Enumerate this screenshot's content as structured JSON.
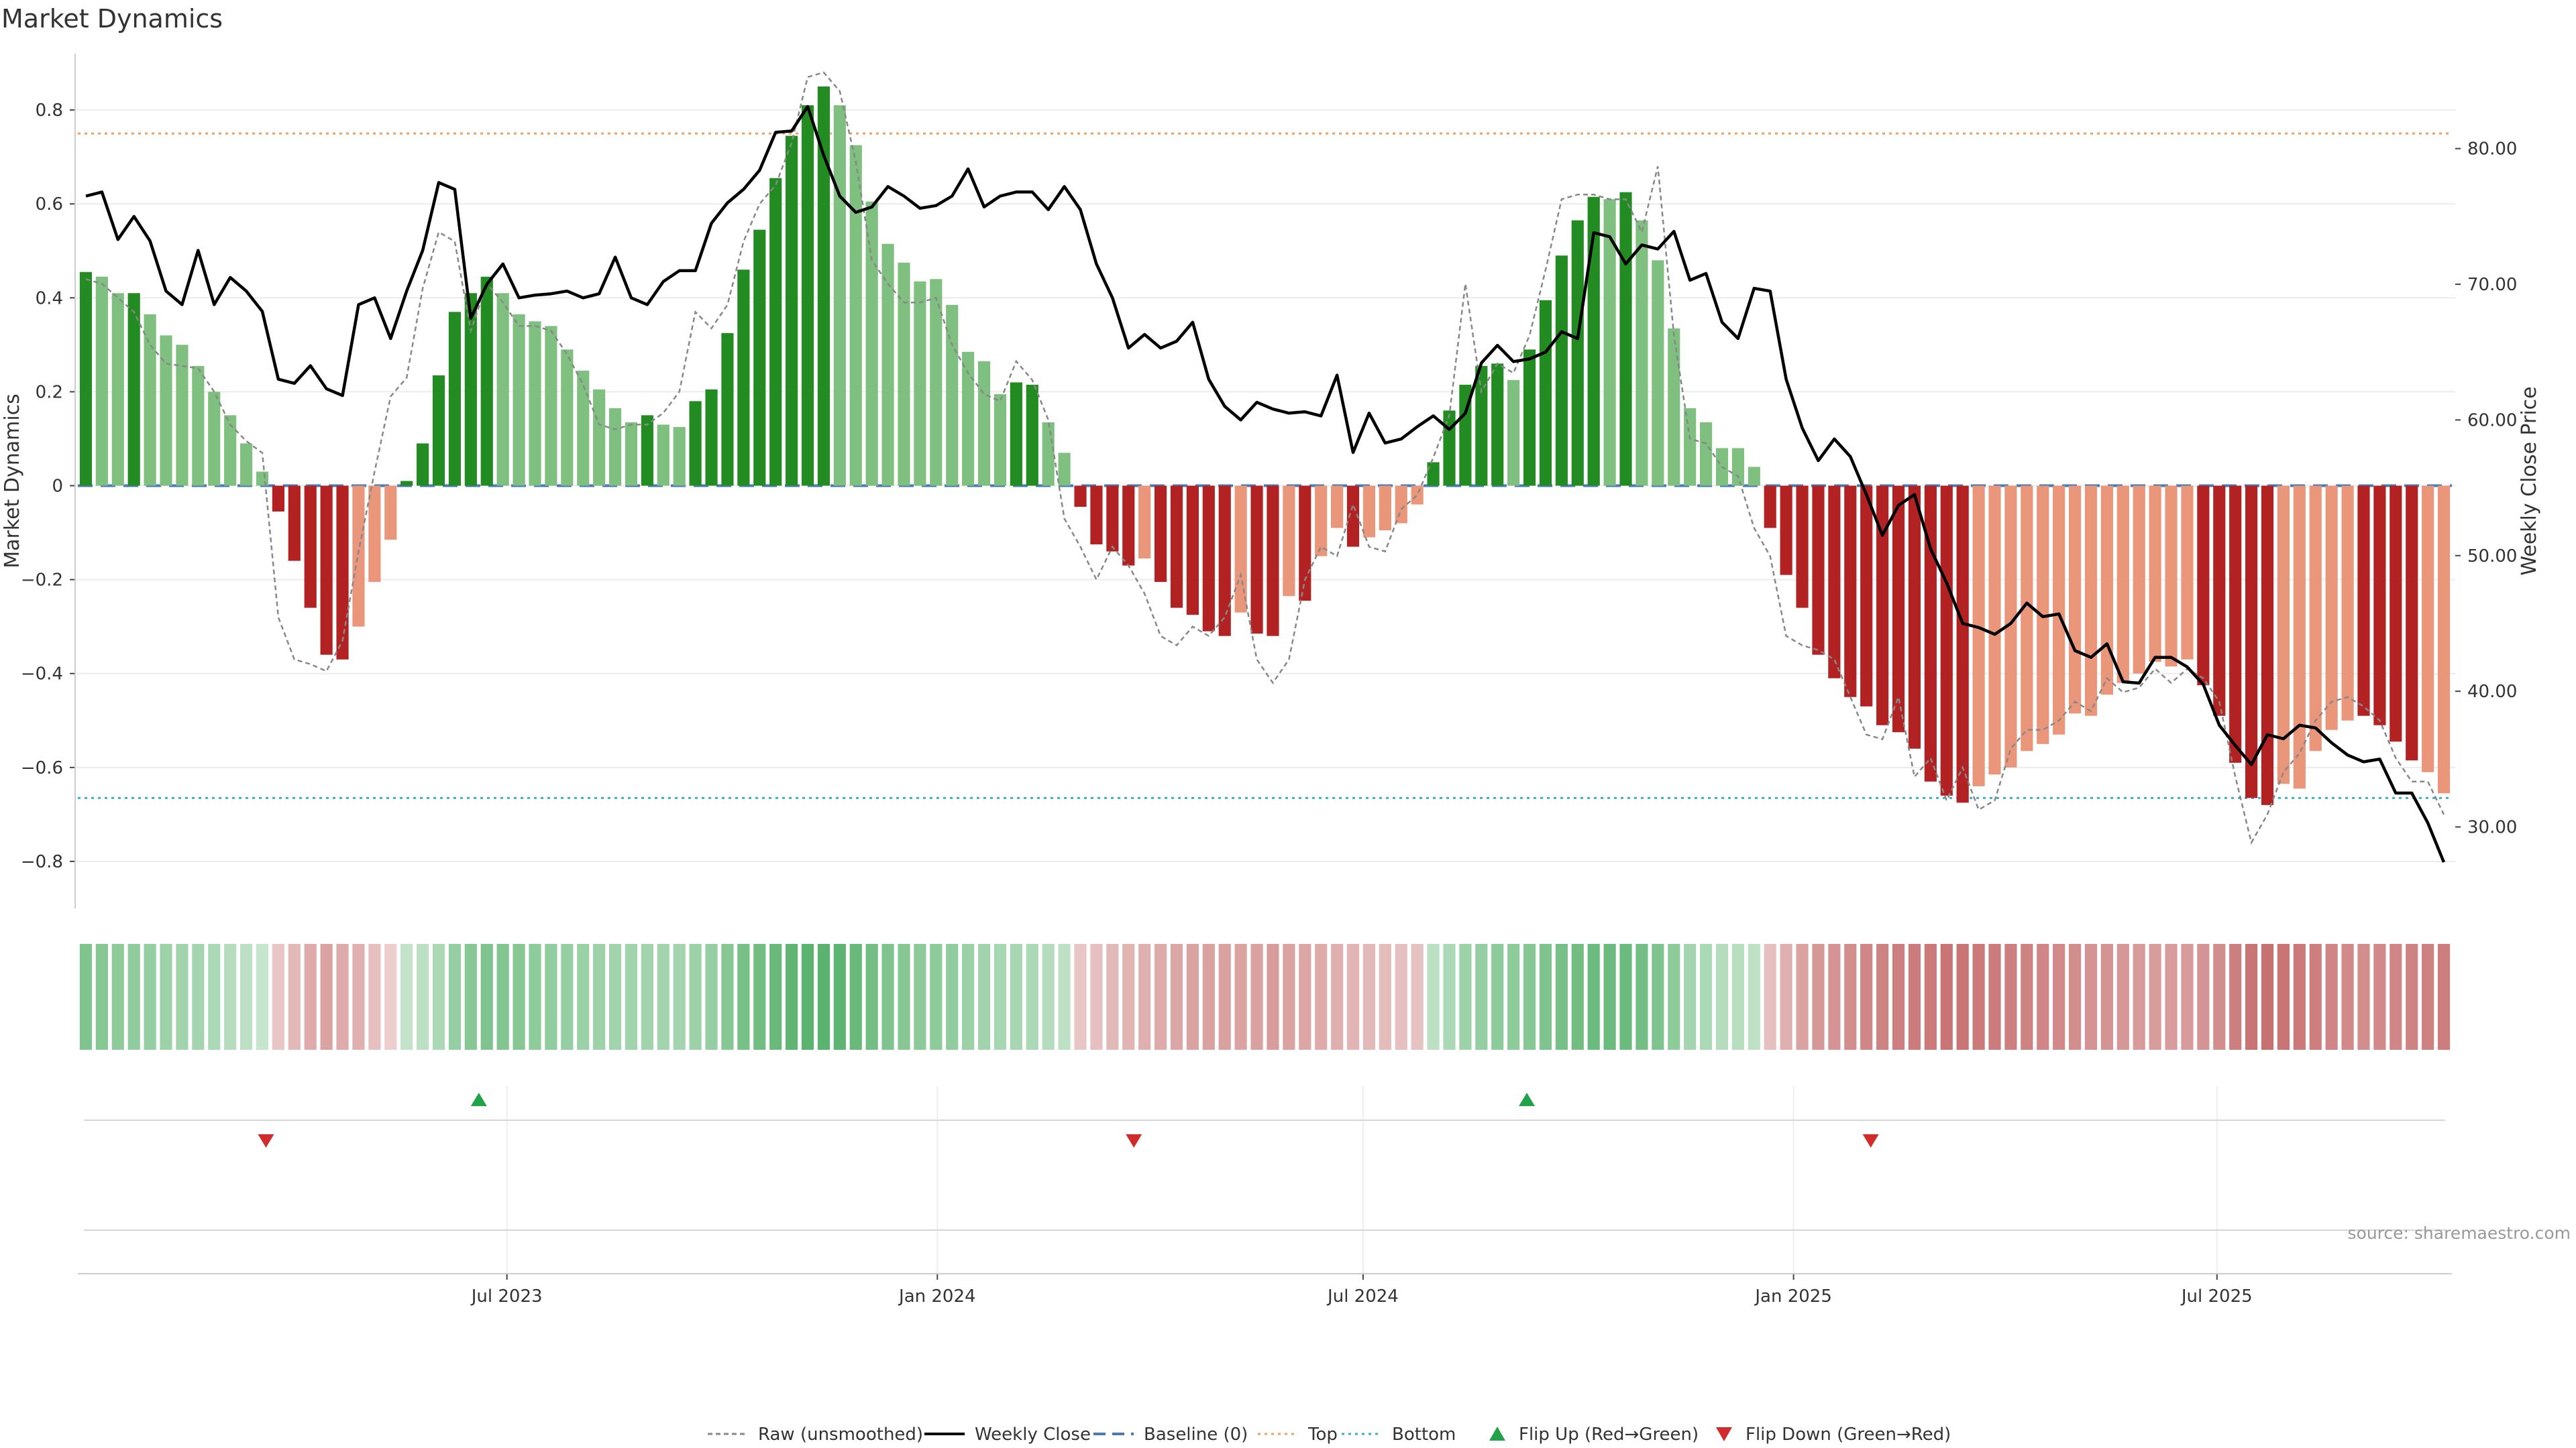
{
  "title": "Market Dynamics",
  "source_note": "source: sharemaestro.com",
  "colors": {
    "pos_strong": "#228B22",
    "pos_light": "#7FBF7F",
    "neg_strong": "#B22222",
    "neg_light": "#E9967A",
    "raw_line": "#888888",
    "close_line": "#000000",
    "baseline": "#4a7ab5",
    "top_line": "#f0a060",
    "bottom_line": "#40b0c0",
    "flip_up": "#22a34a",
    "flip_down": "#d22b2b"
  },
  "chart_data": {
    "type": "bar",
    "title": "Market Dynamics",
    "ylabel": "Market Dynamics",
    "y2label": "Weekly Close Price",
    "ylim": [
      -0.9,
      0.92
    ],
    "y2lim": [
      24,
      87
    ],
    "yticks": [
      -0.8,
      -0.6,
      -0.4,
      -0.2,
      0,
      0.2,
      0.4,
      0.6,
      0.8
    ],
    "ytick_labels": [
      "−0.8",
      "−0.6",
      "−0.4",
      "−0.2",
      "0",
      "0.2",
      "0.4",
      "0.6",
      "0.8"
    ],
    "y2ticks": [
      30,
      40,
      50,
      60,
      70,
      80
    ],
    "y2tick_labels": [
      "30.00",
      "40.00",
      "50.00",
      "60.00",
      "70.00",
      "80.00"
    ],
    "x_start": "2023-01-02",
    "x_end": "2025-10-06",
    "xticks": [
      "2023-07-01",
      "2024-01-01",
      "2024-07-01",
      "2025-01-01",
      "2025-07-01"
    ],
    "xtick_labels": [
      "Jul 2023",
      "Jan 2024",
      "Jul 2024",
      "Jan 2025",
      "Jul 2025"
    ],
    "top_threshold": 0.75,
    "bottom_threshold": -0.665,
    "values": [
      0.455,
      0.445,
      0.41,
      0.41,
      0.365,
      0.32,
      0.3,
      0.255,
      0.2,
      0.15,
      0.09,
      0.03,
      -0.055,
      -0.16,
      -0.26,
      -0.36,
      -0.37,
      -0.3,
      -0.205,
      -0.115,
      0.01,
      0.09,
      0.235,
      0.37,
      0.41,
      0.445,
      0.41,
      0.365,
      0.35,
      0.34,
      0.29,
      0.245,
      0.205,
      0.165,
      0.135,
      0.15,
      0.13,
      0.125,
      0.18,
      0.205,
      0.325,
      0.46,
      0.545,
      0.655,
      0.745,
      0.81,
      0.85,
      0.81,
      0.725,
      0.605,
      0.515,
      0.475,
      0.435,
      0.44,
      0.385,
      0.285,
      0.265,
      0.195,
      0.22,
      0.215,
      0.135,
      0.07,
      -0.045,
      -0.125,
      -0.14,
      -0.17,
      -0.155,
      -0.205,
      -0.26,
      -0.275,
      -0.31,
      -0.32,
      -0.27,
      -0.315,
      -0.32,
      -0.235,
      -0.245,
      -0.15,
      -0.09,
      -0.13,
      -0.11,
      -0.095,
      -0.08,
      -0.04,
      0.05,
      0.16,
      0.215,
      0.255,
      0.26,
      0.225,
      0.29,
      0.395,
      0.49,
      0.565,
      0.615,
      0.61,
      0.625,
      0.565,
      0.48,
      0.335,
      0.165,
      0.135,
      0.08,
      0.08,
      0.04,
      -0.09,
      -0.19,
      -0.26,
      -0.36,
      -0.41,
      -0.45,
      -0.47,
      -0.51,
      -0.525,
      -0.56,
      -0.63,
      -0.66,
      -0.675,
      -0.64,
      -0.615,
      -0.6,
      -0.565,
      -0.55,
      -0.53,
      -0.485,
      -0.49,
      -0.445,
      -0.42,
      -0.4,
      -0.375,
      -0.385,
      -0.37,
      -0.425,
      -0.49,
      -0.59,
      -0.665,
      -0.68,
      -0.635,
      -0.645,
      -0.565,
      -0.52,
      -0.5,
      -0.49,
      -0.51,
      -0.545,
      -0.585,
      -0.61,
      -0.655
    ],
    "shades": [
      1,
      0,
      0,
      1,
      0,
      0,
      0,
      0,
      0,
      0,
      0,
      0,
      1,
      1,
      1,
      1,
      1,
      0,
      0,
      0,
      1,
      1,
      1,
      1,
      1,
      1,
      0,
      0,
      0,
      0,
      0,
      0,
      0,
      0,
      0,
      1,
      0,
      0,
      1,
      1,
      1,
      1,
      1,
      1,
      1,
      1,
      1,
      0,
      0,
      0,
      0,
      0,
      0,
      0,
      0,
      0,
      0,
      0,
      1,
      1,
      0,
      0,
      1,
      1,
      1,
      1,
      0,
      1,
      1,
      1,
      1,
      1,
      0,
      1,
      1,
      0,
      1,
      0,
      0,
      1,
      0,
      0,
      0,
      0,
      1,
      1,
      1,
      1,
      1,
      0,
      1,
      1,
      1,
      1,
      1,
      0,
      1,
      0,
      0,
      0,
      0,
      0,
      0,
      0,
      0,
      1,
      1,
      1,
      1,
      1,
      1,
      1,
      1,
      1,
      1,
      1,
      1,
      1,
      0,
      0,
      0,
      0,
      0,
      0,
      0,
      0,
      0,
      0,
      0,
      0,
      0,
      0,
      1,
      1,
      1,
      1,
      1,
      0,
      0,
      0,
      0,
      0,
      1,
      1,
      1,
      1
    ],
    "series": [
      {
        "name": "Raw (unsmoothed)",
        "values": [
          0.44,
          0.43,
          0.4,
          0.37,
          0.3,
          0.26,
          0.255,
          0.25,
          0.2,
          0.13,
          0.095,
          0.07,
          -0.28,
          -0.37,
          -0.38,
          -0.395,
          -0.33,
          -0.14,
          0.03,
          0.19,
          0.23,
          0.42,
          0.54,
          0.52,
          0.33,
          0.43,
          0.39,
          0.34,
          0.34,
          0.33,
          0.28,
          0.215,
          0.13,
          0.12,
          0.13,
          0.13,
          0.155,
          0.2,
          0.37,
          0.335,
          0.385,
          0.52,
          0.6,
          0.64,
          0.73,
          0.87,
          0.88,
          0.84,
          0.69,
          0.48,
          0.43,
          0.39,
          0.39,
          0.4,
          0.3,
          0.24,
          0.195,
          0.18,
          0.265,
          0.225,
          0.14,
          -0.07,
          -0.13,
          -0.2,
          -0.13,
          -0.17,
          -0.23,
          -0.32,
          -0.34,
          -0.3,
          -0.32,
          -0.28,
          -0.19,
          -0.37,
          -0.42,
          -0.37,
          -0.2,
          -0.13,
          -0.15,
          -0.04,
          -0.13,
          -0.14,
          -0.05,
          -0.02,
          0.06,
          0.15,
          0.43,
          0.2,
          0.26,
          0.24,
          0.32,
          0.46,
          0.61,
          0.62,
          0.62,
          0.61,
          0.61,
          0.54,
          0.68,
          0.32,
          0.1,
          0.09,
          0.04,
          0.02,
          -0.09,
          -0.15,
          -0.32,
          -0.34,
          -0.35,
          -0.37,
          -0.45,
          -0.53,
          -0.54,
          -0.45,
          -0.62,
          -0.58,
          -0.67,
          -0.6,
          -0.69,
          -0.67,
          -0.56,
          -0.52,
          -0.52,
          -0.5,
          -0.46,
          -0.48,
          -0.41,
          -0.44,
          -0.43,
          -0.39,
          -0.42,
          -0.39,
          -0.41,
          -0.46,
          -0.62,
          -0.76,
          -0.7,
          -0.61,
          -0.57,
          -0.5,
          -0.46,
          -0.45,
          -0.47,
          -0.5,
          -0.58,
          -0.63,
          -0.63,
          -0.7
        ]
      },
      {
        "name": "Weekly Close",
        "values": [
          76.5,
          76.8,
          73.3,
          75,
          73.2,
          69.5,
          68.5,
          72.5,
          68.5,
          70.5,
          69.5,
          68,
          63,
          62.7,
          64,
          62.3,
          61.8,
          68.5,
          69,
          66,
          69.5,
          72.5,
          77.5,
          77,
          67.5,
          70,
          71.5,
          69,
          69.2,
          69.3,
          69.5,
          69,
          69.3,
          72,
          69,
          68.5,
          70.2,
          71,
          71,
          74.5,
          76,
          77,
          78.4,
          81.2,
          81.3,
          83.1,
          79.5,
          76.5,
          75.3,
          75.7,
          77.2,
          76.5,
          75.6,
          75.8,
          76.5,
          78.5,
          75.7,
          76.5,
          76.8,
          76.8,
          75.5,
          77.2,
          75.5,
          71.5,
          69,
          65.3,
          66.3,
          65.3,
          65.8,
          67.2,
          63,
          61,
          60,
          61.3,
          60.8,
          60.5,
          60.6,
          60.3,
          63.3,
          57.6,
          60.5,
          58.3,
          58.6,
          59.5,
          60.3,
          59.3,
          60.5,
          64.2,
          65.5,
          64.3,
          64.5,
          65,
          66.5,
          66,
          73.8,
          73.5,
          71.5,
          72.9,
          72.6,
          73.9,
          70.3,
          70.8,
          67.2,
          66,
          69.7,
          69.5,
          63,
          59.4,
          57,
          58.6,
          57.3,
          54.5,
          51.5,
          53.7,
          54.5,
          50.5,
          48,
          45,
          44.7,
          44.2,
          45,
          46.5,
          45.5,
          45.7,
          43,
          42.5,
          43.5,
          40.7,
          40.6,
          42.5,
          42.5,
          41.8,
          40.5,
          37.5,
          36,
          34.6,
          36.8,
          36.5,
          37.5,
          37.3,
          36.2,
          35.3,
          34.8,
          35,
          32.5,
          32.5,
          30.3,
          27.4
        ]
      }
    ],
    "panel2_intensity": [
      0.6,
      0.55,
      0.5,
      0.48,
      0.45,
      0.4,
      0.38,
      0.35,
      0.3,
      0.25,
      0.2,
      0.12,
      0.15,
      0.25,
      0.35,
      0.4,
      0.35,
      0.3,
      0.2,
      0.1,
      0.15,
      0.2,
      0.3,
      0.45,
      0.55,
      0.6,
      0.58,
      0.55,
      0.5,
      0.48,
      0.45,
      0.42,
      0.4,
      0.38,
      0.38,
      0.38,
      0.36,
      0.36,
      0.4,
      0.45,
      0.55,
      0.65,
      0.7,
      0.75,
      0.8,
      0.85,
      0.85,
      0.82,
      0.75,
      0.68,
      0.6,
      0.55,
      0.52,
      0.5,
      0.48,
      0.42,
      0.38,
      0.34,
      0.33,
      0.3,
      0.25,
      0.18,
      0.15,
      0.2,
      0.25,
      0.28,
      0.3,
      0.35,
      0.38,
      0.4,
      0.42,
      0.42,
      0.4,
      0.42,
      0.45,
      0.4,
      0.38,
      0.35,
      0.3,
      0.28,
      0.25,
      0.22,
      0.2,
      0.18,
      0.2,
      0.3,
      0.4,
      0.45,
      0.5,
      0.5,
      0.55,
      0.6,
      0.65,
      0.7,
      0.72,
      0.72,
      0.72,
      0.68,
      0.6,
      0.5,
      0.35,
      0.3,
      0.25,
      0.22,
      0.18,
      0.2,
      0.3,
      0.4,
      0.48,
      0.52,
      0.56,
      0.6,
      0.62,
      0.65,
      0.68,
      0.7,
      0.72,
      0.72,
      0.7,
      0.68,
      0.65,
      0.62,
      0.6,
      0.58,
      0.55,
      0.52,
      0.5,
      0.48,
      0.46,
      0.45,
      0.45,
      0.46,
      0.5,
      0.55,
      0.65,
      0.72,
      0.75,
      0.72,
      0.7,
      0.65,
      0.6,
      0.58,
      0.56,
      0.58,
      0.6,
      0.62,
      0.64,
      0.66
    ],
    "flips_up": [
      "2023-06-19",
      "2024-09-09"
    ],
    "flips_down": [
      "2023-03-20",
      "2024-03-25",
      "2025-02-03"
    ],
    "legend": [
      "Raw (unsmoothed)",
      "Weekly Close",
      "Baseline (0)",
      "Top",
      "Bottom",
      "Flip Up (Red→Green)",
      "Flip Down (Green→Red)"
    ],
    "legend_position": "bottom-center"
  }
}
